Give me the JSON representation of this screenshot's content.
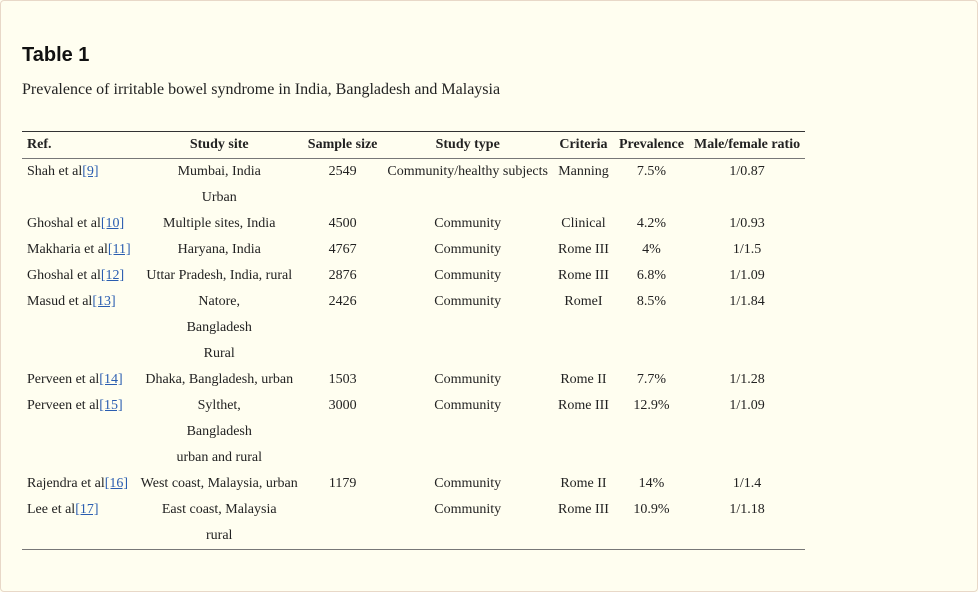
{
  "table": {
    "heading": "Table 1",
    "caption": "Prevalence of irritable bowel syndrome in India, Bangladesh and Malaysia",
    "headers": [
      "Ref.",
      "Study site",
      "Sample size",
      "Study type",
      "Criteria",
      "Prevalence",
      "Male/female ratio"
    ],
    "rows": [
      {
        "ref": "Shah et al",
        "cite": "[9]",
        "site": [
          "Mumbai, India",
          "Urban"
        ],
        "sample": "2549",
        "type": "Community/healthy subjects",
        "criteria": "Manning",
        "prevalence": "7.5%",
        "ratio": "1/0.87"
      },
      {
        "ref": "Ghoshal et al",
        "cite": "[10]",
        "site": [
          "Multiple sites, India"
        ],
        "sample": "4500",
        "type": "Community",
        "criteria": "Clinical",
        "prevalence": "4.2%",
        "ratio": "1/0.93"
      },
      {
        "ref": "Makharia et al",
        "cite": "[11]",
        "site": [
          "Haryana, India"
        ],
        "sample": "4767",
        "type": "Community",
        "criteria": "Rome III",
        "prevalence": "4%",
        "ratio": "1/1.5"
      },
      {
        "ref": "Ghoshal et al",
        "cite": "[12]",
        "site": [
          "Uttar Pradesh, India, rural"
        ],
        "sample": "2876",
        "type": "Community",
        "criteria": "Rome III",
        "prevalence": "6.8%",
        "ratio": "1/1.09"
      },
      {
        "ref": "Masud et al",
        "cite": "[13]",
        "site": [
          "Natore,",
          "Bangladesh",
          "Rural"
        ],
        "sample": "2426",
        "type": "Community",
        "criteria": "RomeI",
        "prevalence": "8.5%",
        "ratio": "1/1.84"
      },
      {
        "ref": "Perveen et al",
        "cite": "[14]",
        "site": [
          "Dhaka, Bangladesh, urban"
        ],
        "sample": "1503",
        "type": "Community",
        "criteria": "Rome II",
        "prevalence": "7.7%",
        "ratio": "1/1.28"
      },
      {
        "ref": "Perveen et al",
        "cite": "[15]",
        "site": [
          "Sylthet,",
          "Bangladesh",
          "urban and rural"
        ],
        "sample": "3000",
        "type": "Community",
        "criteria": "Rome III",
        "prevalence": "12.9%",
        "ratio": "1/1.09"
      },
      {
        "ref": "Rajendra et al",
        "cite": "[16]",
        "site": [
          "West coast, Malaysia, urban"
        ],
        "sample": "1179",
        "type": "Community",
        "criteria": "Rome II",
        "prevalence": "14%",
        "ratio": "1/1.4"
      },
      {
        "ref": "Lee et al",
        "cite": "[17]",
        "site": [
          "East coast, Malaysia",
          "rural"
        ],
        "sample": "",
        "type": "Community",
        "criteria": "Rome III",
        "prevalence": "10.9%",
        "ratio": "1/1.18"
      }
    ]
  }
}
